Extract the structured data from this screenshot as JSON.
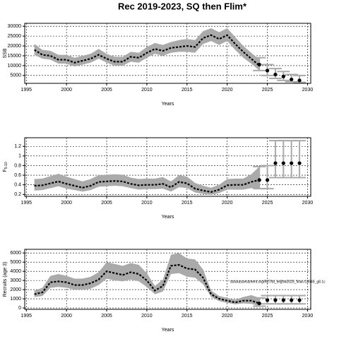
{
  "title": "Rec 2019-2023, SQ then Flim*",
  "chart_data": [
    {
      "type": "line",
      "ylabel": "SSB",
      "xlabel": "Years",
      "x": [
        1996,
        1997,
        1998,
        1999,
        2000,
        2001,
        2002,
        2003,
        2004,
        2005,
        2006,
        2007,
        2008,
        2009,
        2010,
        2011,
        2012,
        2013,
        2014,
        2015,
        2016,
        2017,
        2018,
        2019,
        2020,
        2021,
        2022,
        2023,
        2024
      ],
      "values": [
        18000,
        15500,
        15000,
        13000,
        13000,
        11500,
        12500,
        13500,
        15500,
        13500,
        12000,
        12000,
        14500,
        14000,
        16500,
        18500,
        17500,
        19000,
        19500,
        20000,
        19500,
        24000,
        25500,
        23500,
        25500,
        21000,
        17000,
        13500,
        10000
      ],
      "lower": [
        15500,
        13500,
        13000,
        11000,
        11000,
        9500,
        10500,
        11500,
        13500,
        11500,
        10000,
        10000,
        12000,
        11500,
        14000,
        16000,
        15000,
        16500,
        17000,
        17000,
        16500,
        21000,
        22500,
        20500,
        22500,
        18000,
        14000,
        11000,
        7500
      ],
      "upper": [
        21000,
        18000,
        17500,
        15500,
        15500,
        14000,
        15000,
        16000,
        18500,
        16000,
        14500,
        14500,
        17000,
        16500,
        19500,
        21500,
        20500,
        22000,
        23000,
        23500,
        23000,
        27500,
        29000,
        27000,
        29000,
        24500,
        20000,
        16500,
        13000
      ],
      "proj_x": [
        2024,
        2025,
        2026,
        2027,
        2028,
        2029
      ],
      "proj_values": [
        10500,
        7500,
        5500,
        4500,
        3000,
        2500
      ],
      "proj_lower": [
        7500,
        5000,
        3500,
        2500,
        1800,
        1500
      ],
      "proj_upper": [
        14000,
        10500,
        8500,
        7000,
        5500,
        5000
      ],
      "xlim": [
        1994.8,
        2030.4
      ],
      "xticks": [
        1995,
        2000,
        2005,
        2010,
        2015,
        2020,
        2025,
        2030
      ],
      "ylim": [
        1000,
        31500
      ],
      "yticks": [
        5000,
        10000,
        15000,
        20000,
        25000,
        30000
      ],
      "grid": true
    },
    {
      "type": "line",
      "ylabel": "F",
      "ylabel_sub": "5-10",
      "xlabel": "Years",
      "x": [
        1996,
        1997,
        1998,
        1999,
        2000,
        2001,
        2002,
        2003,
        2004,
        2005,
        2006,
        2007,
        2008,
        2009,
        2010,
        2011,
        2012,
        2013,
        2014,
        2015,
        2016,
        2017,
        2018,
        2019,
        2020,
        2021,
        2022,
        2023,
        2024
      ],
      "values": [
        0.38,
        0.39,
        0.43,
        0.47,
        0.42,
        0.38,
        0.34,
        0.38,
        0.46,
        0.47,
        0.48,
        0.47,
        0.42,
        0.39,
        0.4,
        0.4,
        0.42,
        0.35,
        0.46,
        0.43,
        0.32,
        0.28,
        0.25,
        0.3,
        0.39,
        0.4,
        0.4,
        0.46,
        0.5
      ],
      "lower": [
        0.28,
        0.29,
        0.33,
        0.37,
        0.32,
        0.29,
        0.26,
        0.29,
        0.36,
        0.37,
        0.38,
        0.37,
        0.33,
        0.3,
        0.31,
        0.31,
        0.32,
        0.26,
        0.35,
        0.33,
        0.24,
        0.21,
        0.19,
        0.23,
        0.3,
        0.3,
        0.3,
        0.33,
        0.32
      ],
      "upper": [
        0.52,
        0.53,
        0.58,
        0.63,
        0.57,
        0.52,
        0.47,
        0.52,
        0.6,
        0.61,
        0.62,
        0.61,
        0.55,
        0.52,
        0.53,
        0.53,
        0.56,
        0.47,
        0.6,
        0.57,
        0.44,
        0.38,
        0.34,
        0.4,
        0.52,
        0.53,
        0.53,
        0.62,
        0.78
      ],
      "proj_x": [
        2024,
        2025,
        2026,
        2027,
        2028,
        2029
      ],
      "proj_values": [
        0.5,
        0.5,
        0.85,
        0.85,
        0.85,
        0.85
      ],
      "proj_lower": [
        0.32,
        0.32,
        0.55,
        0.55,
        0.55,
        0.55
      ],
      "proj_upper": [
        0.78,
        0.8,
        1.32,
        1.32,
        1.32,
        1.32
      ],
      "xlim": [
        1994.8,
        2030.4
      ],
      "xticks": [
        1995,
        2000,
        2005,
        2010,
        2015,
        2020,
        2025,
        2030
      ],
      "ylim": [
        0.16,
        1.38
      ],
      "yticks": [
        0.2,
        0.4,
        0.6,
        0.8,
        1.0,
        1.2
      ],
      "grid": true
    },
    {
      "type": "line",
      "ylabel": "Recruits (age 3)",
      "xlabel": "Years",
      "annotation": "stockassessment.org/R27/bl_le@tw2025_final.r18949_g8.1c",
      "x": [
        1996,
        1997,
        1998,
        1999,
        2000,
        2001,
        2002,
        2003,
        2004,
        2005,
        2006,
        2007,
        2008,
        2009,
        2010,
        2011,
        2012,
        2013,
        2014,
        2015,
        2016,
        2017,
        2018,
        2019,
        2020,
        2021,
        2022,
        2023,
        2024
      ],
      "values": [
        1500,
        1700,
        2800,
        2900,
        2800,
        2500,
        2500,
        2700,
        3100,
        4000,
        3800,
        3600,
        3900,
        3700,
        3000,
        1900,
        2400,
        4600,
        4700,
        4300,
        4200,
        3300,
        1500,
        1000,
        800,
        600,
        800,
        800,
        500
      ],
      "lower": [
        1200,
        1300,
        2200,
        2300,
        2200,
        2000,
        2000,
        2100,
        2500,
        3200,
        3000,
        2900,
        3100,
        2900,
        2300,
        1500,
        1800,
        3700,
        3800,
        3400,
        3300,
        2600,
        1200,
        750,
        550,
        400,
        500,
        450,
        200
      ],
      "upper": [
        1900,
        2200,
        3500,
        3700,
        3500,
        3200,
        3200,
        3400,
        3900,
        5000,
        4800,
        4600,
        4900,
        4700,
        3800,
        2400,
        3100,
        5800,
        6000,
        5400,
        5300,
        4200,
        1900,
        1300,
        1100,
        900,
        1200,
        1400,
        1100
      ],
      "proj_x": [
        2024,
        2025,
        2026,
        2027,
        2028,
        2029
      ],
      "proj_values": [
        500,
        850,
        850,
        850,
        850,
        850
      ],
      "proj_lower": [
        200,
        450,
        450,
        450,
        450,
        450
      ],
      "proj_upper": [
        1100,
        1350,
        1350,
        1350,
        1350,
        1350
      ],
      "xlim": [
        1994.8,
        2030.4
      ],
      "xticks": [
        1995,
        2000,
        2005,
        2010,
        2015,
        2020,
        2025,
        2030
      ],
      "ylim": [
        -150,
        6400
      ],
      "yticks": [
        0,
        1000,
        2000,
        3000,
        4000,
        5000,
        6000
      ],
      "grid": true
    }
  ]
}
